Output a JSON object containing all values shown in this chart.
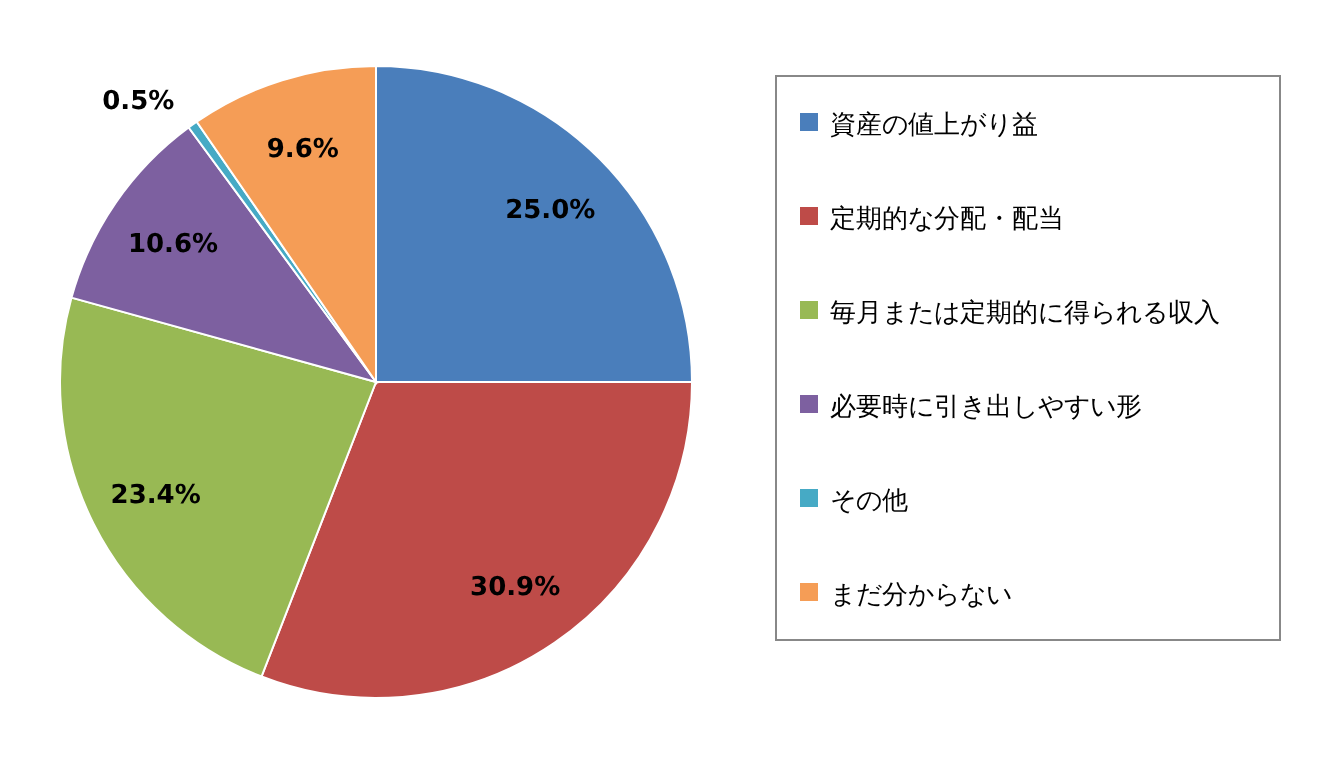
{
  "chart_data": {
    "type": "pie",
    "categories": [
      "資産の値上がり益",
      "定期的な分配・配当",
      "毎月または定期的に得られる収入",
      "必要時に引き出しやすい形",
      "その他",
      "まだ分からない"
    ],
    "values": [
      25.0,
      30.9,
      23.4,
      10.6,
      0.5,
      9.6
    ],
    "colors": [
      "#4a7ebb",
      "#be4b48",
      "#98b954",
      "#7d60a0",
      "#46aac5",
      "#f59d56"
    ],
    "value_labels": [
      "25.0%",
      "30.9%",
      "23.4%",
      "10.6%",
      "0.5%",
      "9.6%"
    ],
    "legend": "right"
  }
}
